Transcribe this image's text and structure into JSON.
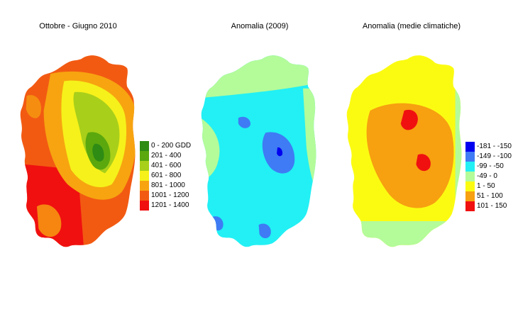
{
  "panels": [
    {
      "title": "Ottobre - Giugno 2010",
      "legend": [
        {
          "label": "0 - 200 GDD",
          "color": "#2e8b14"
        },
        {
          "label": "201 - 400",
          "color": "#5aa80e"
        },
        {
          "label": "401 - 600",
          "color": "#a8cf1a"
        },
        {
          "label": "601 - 800",
          "color": "#f6f11a"
        },
        {
          "label": "801 - 1000",
          "color": "#f7a410"
        },
        {
          "label": "1001 - 1200",
          "color": "#f25a12"
        },
        {
          "label": "1201 - 1400",
          "color": "#f01010"
        }
      ]
    },
    {
      "title": "Anomalia (2009)"
    },
    {
      "title": "Anomalia (medie climatiche)",
      "legend": [
        {
          "label": "-181 - -150",
          "color": "#0000f0"
        },
        {
          "label": "-149 - -100",
          "color": "#3f7bf4"
        },
        {
          "label": "-99 - -50",
          "color": "#22f0f4"
        },
        {
          "label": "-49 - 0",
          "color": "#b4fb9a"
        },
        {
          "label": "1 - 50",
          "color": "#fbfb12"
        },
        {
          "label": "51 - 100",
          "color": "#f7a010"
        },
        {
          "label": "101 - 150",
          "color": "#f01010"
        }
      ]
    }
  ]
}
